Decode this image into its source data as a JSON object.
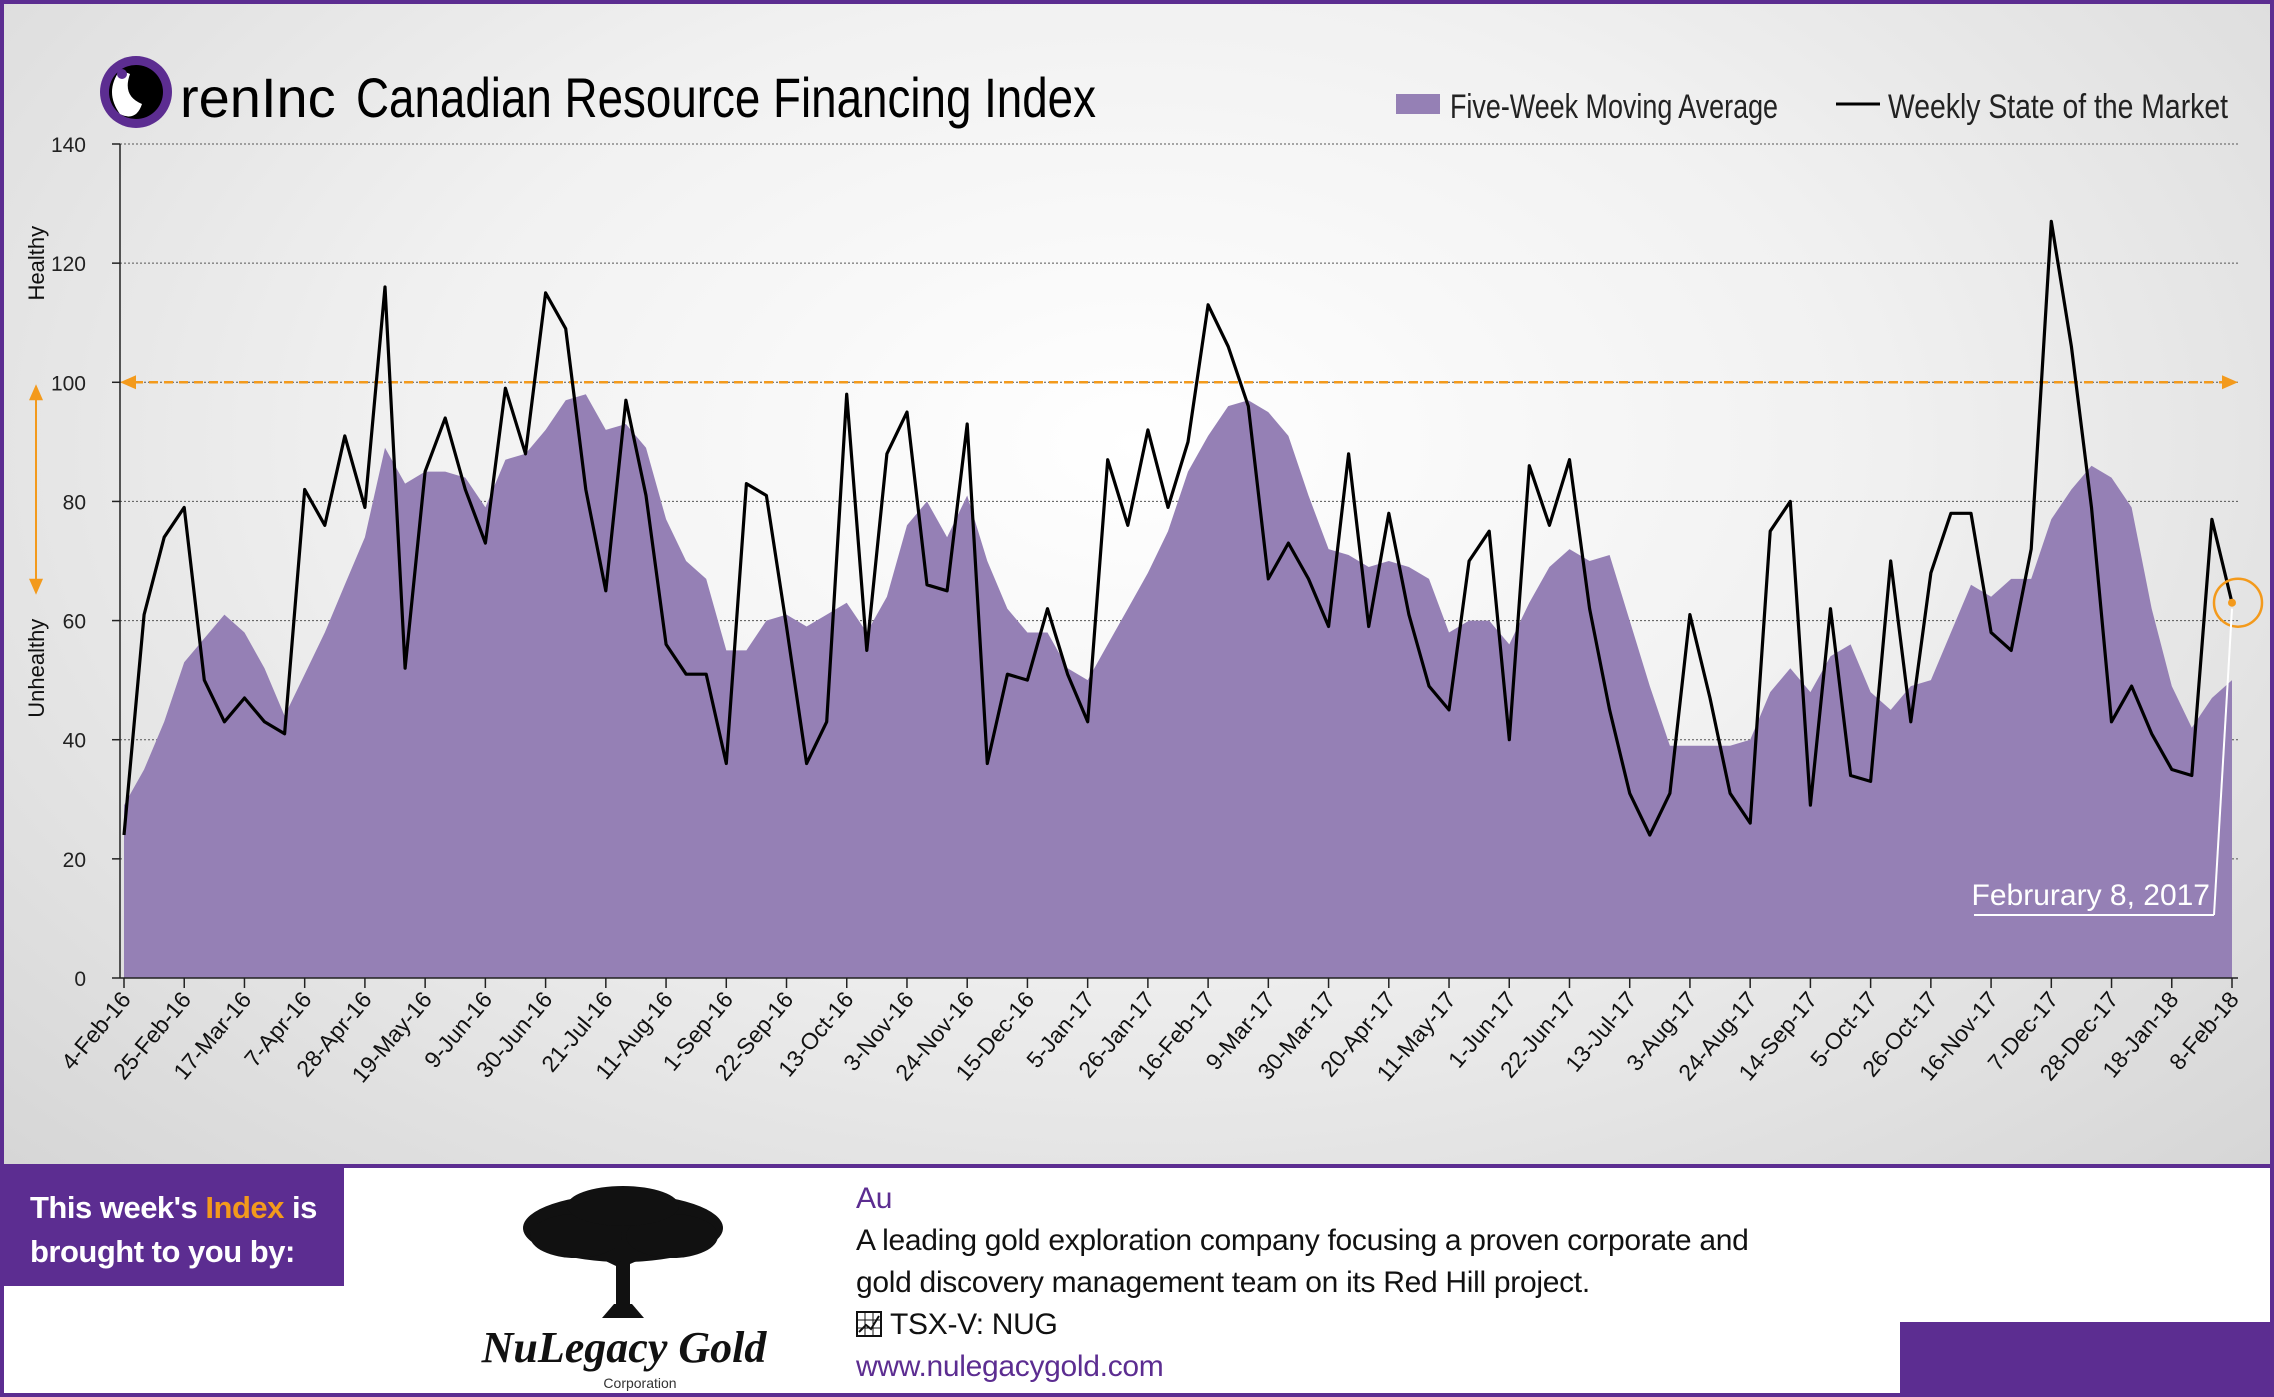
{
  "header": {
    "brand": "renInc",
    "title": "Canadian Resource Financing Index"
  },
  "colors": {
    "accent_purple": "#5c2d91",
    "area_fill": "#9580b5",
    "line": "#000000",
    "threshold_orange": "#f39a1c"
  },
  "chart_data": {
    "type": "line",
    "title": "Canadian Resource Financing Index",
    "xlabel": "",
    "ylabel": "",
    "ylim": [
      0,
      140
    ],
    "yticks": [
      0,
      20,
      40,
      60,
      80,
      100,
      120,
      140
    ],
    "grid": true,
    "legend_position": "top-right",
    "y_side_labels": {
      "top": "Healthy",
      "bottom": "Unhealthy"
    },
    "threshold": 100,
    "x_tick_labels": [
      "4-Feb-16",
      "25-Feb-16",
      "17-Mar-16",
      "7-Apr-16",
      "28-Apr-16",
      "19-May-16",
      "9-Jun-16",
      "30-Jun-16",
      "21-Jul-16",
      "11-Aug-16",
      "1-Sep-16",
      "22-Sep-16",
      "13-Oct-16",
      "3-Nov-16",
      "24-Nov-16",
      "15-Dec-16",
      "5-Jan-17",
      "26-Jan-17",
      "16-Feb-17",
      "9-Mar-17",
      "30-Mar-17",
      "20-Apr-17",
      "11-May-17",
      "1-Jun-17",
      "22-Jun-17",
      "13-Jul-17",
      "3-Aug-17",
      "24-Aug-17",
      "14-Sep-17",
      "5-Oct-17",
      "26-Oct-17",
      "16-Nov-17",
      "7-Dec-17",
      "28-Dec-17",
      "18-Jan-18",
      "8-Feb-18"
    ],
    "x_tick_every": 3,
    "series": [
      {
        "name": "Five-Week Moving Average",
        "kind": "area",
        "values": [
          29,
          35,
          43,
          53,
          57,
          61,
          58,
          52,
          44,
          51,
          58,
          66,
          74,
          89,
          83,
          85,
          85,
          84,
          79,
          87,
          88,
          92,
          97,
          98,
          92,
          93,
          89,
          77,
          70,
          67,
          55,
          55,
          60,
          61,
          59,
          61,
          63,
          58,
          64,
          76,
          80,
          74,
          81,
          70,
          62,
          58,
          58,
          52,
          50,
          56,
          62,
          68,
          75,
          85,
          91,
          96,
          97,
          95,
          91,
          81,
          72,
          71,
          69,
          70,
          69,
          67,
          58,
          60,
          60,
          56,
          63,
          69,
          72,
          70,
          71,
          60,
          49,
          39,
          39,
          39,
          39,
          40,
          48,
          52,
          48,
          54,
          56,
          48,
          45,
          49,
          50,
          58,
          66,
          64,
          67,
          67,
          77,
          82,
          86,
          84,
          79,
          62,
          49,
          42,
          47,
          50
        ]
      },
      {
        "name": "Weekly State of the Market",
        "kind": "line",
        "values": [
          24,
          61,
          74,
          79,
          50,
          43,
          47,
          43,
          41,
          82,
          76,
          91,
          79,
          116,
          52,
          85,
          94,
          82,
          73,
          99,
          88,
          115,
          109,
          82,
          65,
          97,
          81,
          56,
          51,
          51,
          36,
          83,
          81,
          59,
          36,
          43,
          98,
          55,
          88,
          95,
          66,
          65,
          93,
          36,
          51,
          50,
          62,
          51,
          43,
          87,
          76,
          92,
          79,
          90,
          113,
          106,
          96,
          67,
          73,
          67,
          59,
          88,
          59,
          78,
          61,
          49,
          45,
          70,
          75,
          40,
          86,
          76,
          87,
          62,
          45,
          31,
          24,
          31,
          61,
          47,
          31,
          26,
          75,
          80,
          29,
          62,
          34,
          33,
          70,
          43,
          68,
          78,
          78,
          58,
          55,
          72,
          127,
          106,
          79,
          43,
          49,
          41,
          35,
          34,
          77,
          63
        ]
      }
    ],
    "annotation": {
      "label": "Februrary 8, 2017"
    }
  },
  "sponsor": {
    "intro_before": "This week's ",
    "intro_highlight": "Index",
    "intro_after": " is",
    "intro_line2": "brought to you by:",
    "company_name": "NuLegacy Gold",
    "company_sub": "Corporation",
    "symbol": "Au",
    "description_line1": "A leading gold exploration company focusing a proven corporate and",
    "description_line2": "gold discovery management team on its Red Hill project.",
    "ticker": "TSX-V:  NUG",
    "website": "www.nulegacygold.com"
  }
}
